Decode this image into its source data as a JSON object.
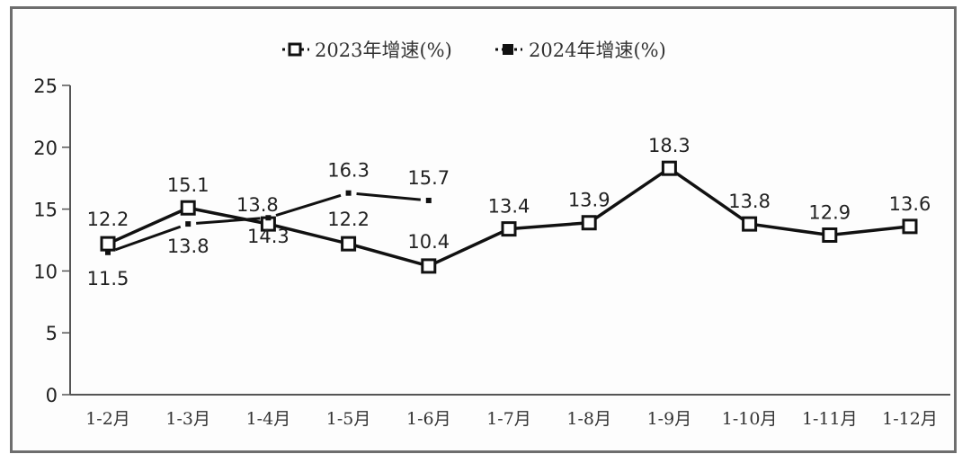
{
  "chart_data": {
    "type": "line",
    "title": "",
    "xlabel": "",
    "ylabel": "",
    "ylim": [
      0,
      25
    ],
    "yticks": [
      0,
      5,
      10,
      15,
      20,
      25
    ],
    "grid": false,
    "legend_position": "top",
    "categories": [
      "1-2月",
      "1-3月",
      "1-4月",
      "1-5月",
      "1-6月",
      "1-7月",
      "1-8月",
      "1-9月",
      "1-10月",
      "1-11月",
      "1-12月"
    ],
    "series": [
      {
        "name": "2023年增速(%)",
        "marker": "hollow-square",
        "values": [
          12.2,
          15.1,
          13.8,
          12.2,
          10.4,
          13.4,
          13.9,
          18.3,
          13.8,
          12.9,
          13.6
        ],
        "labels": [
          "12.2",
          "15.1",
          "13.8",
          "12.2",
          "10.4",
          "13.4",
          "13.9",
          "18.3",
          "13.8",
          "12.9",
          "13.6"
        ]
      },
      {
        "name": "2024年增速(%)",
        "marker": "filled-square-small",
        "values": [
          11.5,
          13.8,
          14.3,
          16.3,
          15.7,
          null,
          null,
          null,
          null,
          null,
          null
        ],
        "labels": [
          "11.5",
          "13.8",
          "14.3",
          "16.3",
          "15.7"
        ]
      }
    ]
  },
  "legend": {
    "item_2023": "2023年增速(%)",
    "item_2024": "2024年增速(%)"
  },
  "colors": {
    "line": "#111111",
    "frame": "#6e6e6e",
    "axis": "#555555"
  }
}
